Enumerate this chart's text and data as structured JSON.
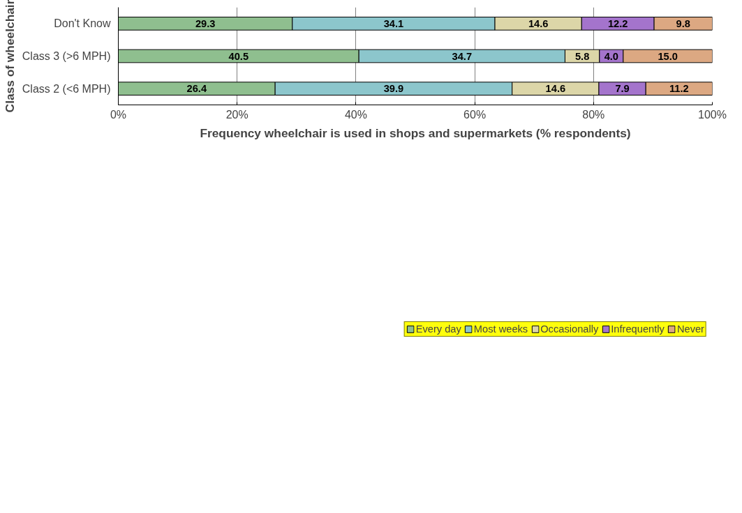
{
  "chart_data": {
    "type": "bar",
    "orientation": "horizontal",
    "stacked": true,
    "xlabel": "Frequency wheelchair is used in shops and supermarkets (% respondents)",
    "ylabel": "Class of wheelchair",
    "categories": [
      "Don't Know",
      "Class 3 (>6 MPH)",
      "Class 2 (<6 MPH)"
    ],
    "series": [
      {
        "name": "Every day",
        "color": "#8fbf8f",
        "values": [
          29.3,
          40.5,
          26.4
        ],
        "value_labels": [
          "29.3",
          "40.5",
          "26.4"
        ]
      },
      {
        "name": "Most weeks",
        "color": "#8cc6cc",
        "values": [
          34.1,
          34.7,
          39.9
        ],
        "value_labels": [
          "34.1",
          "34.7",
          "39.9"
        ]
      },
      {
        "name": "Occasionally",
        "color": "#dcd6a8",
        "values": [
          14.6,
          5.8,
          14.6
        ],
        "value_labels": [
          "14.6",
          "5.8",
          "14.6"
        ]
      },
      {
        "name": "Infrequently",
        "color": "#a474cc",
        "values": [
          12.2,
          4.0,
          7.9
        ],
        "value_labels": [
          "12.2",
          "4.0",
          "7.9"
        ]
      },
      {
        "name": "Never",
        "color": "#dca882",
        "values": [
          9.8,
          15.0,
          11.2
        ],
        "value_labels": [
          "9.8",
          "15.0",
          "11.2"
        ]
      }
    ],
    "xlim": [
      0,
      100
    ],
    "xticks": [
      {
        "value": 0,
        "label": "0%"
      },
      {
        "value": 20,
        "label": "20%"
      },
      {
        "value": 40,
        "label": "40%"
      },
      {
        "value": 60,
        "label": "60%"
      },
      {
        "value": 80,
        "label": "80%"
      },
      {
        "value": 100,
        "label": "100%"
      }
    ],
    "grid": "x",
    "legend": "bottom"
  }
}
